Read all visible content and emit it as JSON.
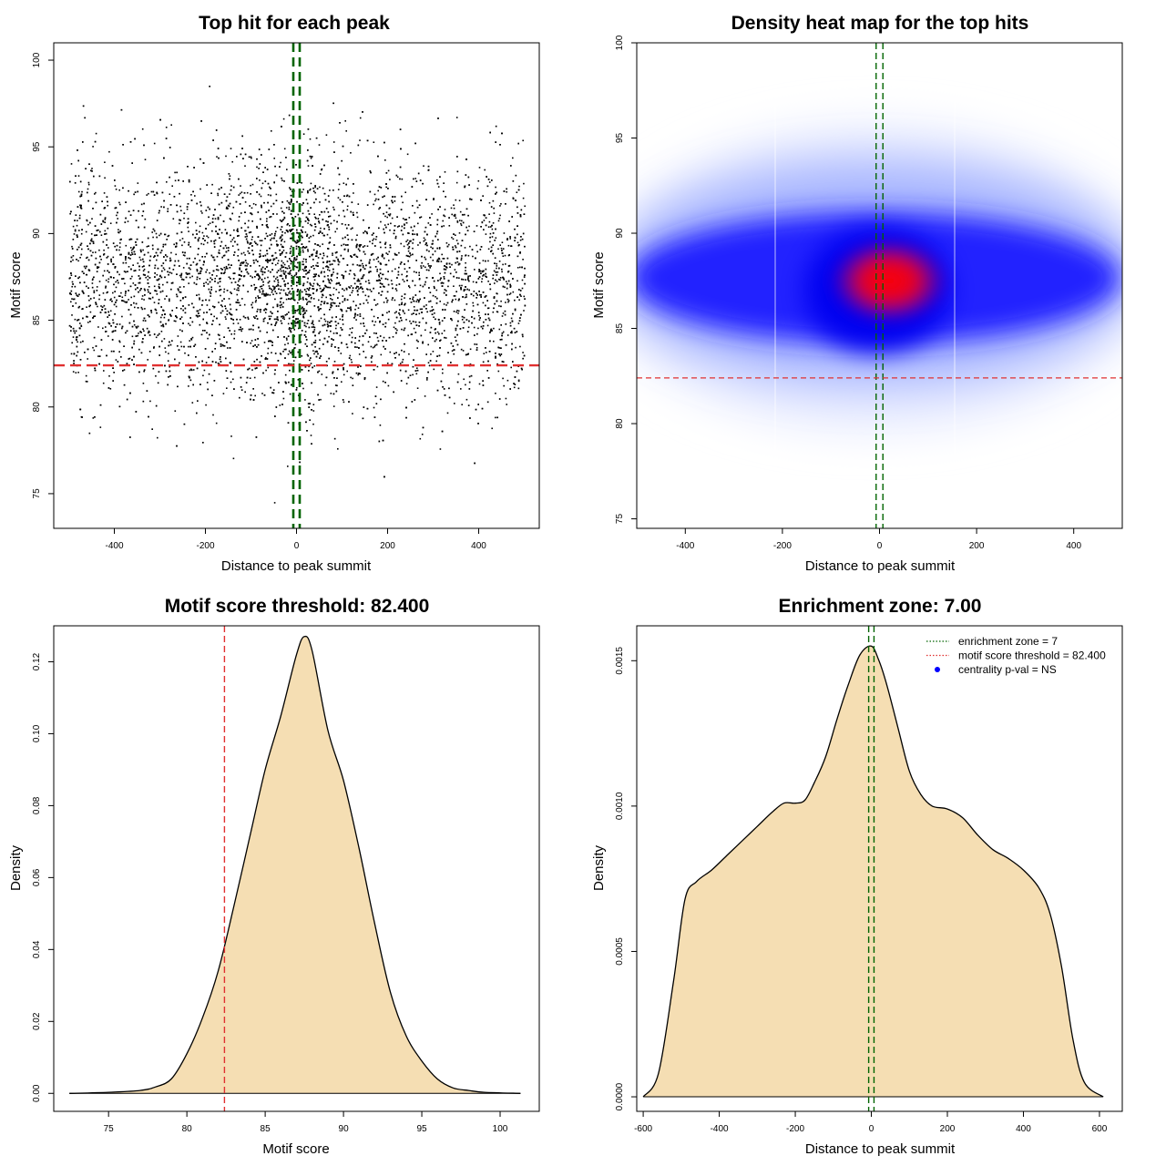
{
  "chart_data": [
    {
      "type": "scatter",
      "title": "Top hit for each peak",
      "xlabel": "Distance to peak summit",
      "ylabel": "Motif score",
      "xlim": [
        -533,
        533
      ],
      "ylim": [
        73,
        101
      ],
      "xticks": [
        "-400",
        "-200",
        "0",
        "200",
        "400"
      ],
      "xtick_values": [
        -400,
        -200,
        0,
        200,
        400
      ],
      "yticks": [
        "75",
        "80",
        "85",
        "90",
        "95",
        "100"
      ],
      "ytick_values": [
        75,
        80,
        85,
        90,
        95,
        100
      ],
      "vlines": [
        -7,
        7
      ],
      "hline": 82.4,
      "point_count": 7000,
      "distribution": {
        "x_range": [
          -500,
          500
        ],
        "y_mean": 87.3,
        "y_sd": 3.4
      },
      "colors": {
        "points": "#000000",
        "vline": "#006400",
        "hline": "#e03030"
      }
    },
    {
      "type": "heatmap",
      "title": "Density heat map for the top hits",
      "xlabel": "Distance to peak summit",
      "ylabel": "Motif score",
      "xlim": [
        -500,
        500
      ],
      "ylim": [
        74.5,
        100
      ],
      "xticks": [
        "-400",
        "-200",
        "0",
        "200",
        "400"
      ],
      "xtick_values": [
        -400,
        -200,
        0,
        200,
        400
      ],
      "yticks": [
        "75",
        "80",
        "85",
        "90",
        "95",
        "100"
      ],
      "ytick_values": [
        75,
        80,
        85,
        90,
        95,
        100
      ],
      "vlines": [
        -7,
        7
      ],
      "hline": 82.4,
      "hot_spot": {
        "x": 20,
        "y": 87.5
      },
      "colors": {
        "low": "#ffffff",
        "mid": "#0000ff",
        "high": "#ff0000",
        "vline": "#006400",
        "hline": "#e03030"
      }
    },
    {
      "type": "area",
      "title": "Motif score threshold: 82.400",
      "xlabel": "Motif score",
      "ylabel": "Density",
      "xlim": [
        71.5,
        102.5
      ],
      "ylim": [
        -0.005,
        0.13
      ],
      "x": [
        72.5,
        75,
        77,
        78,
        79,
        80,
        81,
        82,
        83,
        84,
        85,
        86,
        87,
        87.5,
        88,
        89,
        90,
        91,
        92,
        93,
        94,
        95,
        96,
        97,
        98,
        99,
        101.3
      ],
      "y": [
        0.0,
        0.0003,
        0.0008,
        0.0018,
        0.004,
        0.011,
        0.021,
        0.034,
        0.052,
        0.071,
        0.09,
        0.105,
        0.122,
        0.127,
        0.123,
        0.101,
        0.087,
        0.068,
        0.047,
        0.028,
        0.016,
        0.009,
        0.004,
        0.0015,
        0.0008,
        0.0003,
        0.0
      ],
      "xticks": [
        "75",
        "80",
        "85",
        "90",
        "95",
        "100"
      ],
      "xtick_values": [
        75,
        80,
        85,
        90,
        95,
        100
      ],
      "yticks": [
        "0.00",
        "0.02",
        "0.04",
        "0.06",
        "0.08",
        "0.10",
        "0.12"
      ],
      "ytick_values": [
        0,
        0.02,
        0.04,
        0.06,
        0.08,
        0.1,
        0.12
      ],
      "vline": 82.4,
      "colors": {
        "fill": "#f5deb3",
        "line": "#000000",
        "vline": "#e03030"
      }
    },
    {
      "type": "area",
      "title": "Enrichment zone: 7.00",
      "xlabel": "Distance to peak summit",
      "ylabel": "Density",
      "xlim": [
        -617,
        660
      ],
      "ylim": [
        -5e-05,
        0.00162
      ],
      "x": [
        -600,
        -560,
        -520,
        -490,
        -460,
        -420,
        -380,
        -340,
        -300,
        -260,
        -230,
        -200,
        -175,
        -150,
        -120,
        -90,
        -60,
        -30,
        0,
        20,
        40,
        70,
        100,
        130,
        160,
        200,
        240,
        280,
        320,
        360,
        400,
        440,
        470,
        500,
        530,
        560,
        610
      ],
      "y": [
        0.0,
        8e-05,
        0.0004,
        0.00068,
        0.00074,
        0.00078,
        0.00083,
        0.00088,
        0.00093,
        0.00098,
        0.00101,
        0.00101,
        0.00102,
        0.00108,
        0.00117,
        0.0013,
        0.00142,
        0.00152,
        0.00155,
        0.0015,
        0.00142,
        0.00127,
        0.00112,
        0.00104,
        0.001,
        0.00099,
        0.00096,
        0.0009,
        0.00085,
        0.00082,
        0.00078,
        0.00072,
        0.00063,
        0.00045,
        0.0002,
        5e-05,
        0.0
      ],
      "xticks": [
        "-600",
        "-400",
        "-200",
        "0",
        "200",
        "400",
        "600"
      ],
      "xtick_values": [
        -600,
        -400,
        -200,
        0,
        200,
        400,
        600
      ],
      "yticks": [
        "0.0000",
        "0.0005",
        "0.0010",
        "0.0015"
      ],
      "ytick_values": [
        0,
        0.0005,
        0.001,
        0.0015
      ],
      "vlines": [
        -7,
        7
      ],
      "legend": {
        "position": "top-right",
        "items": [
          {
            "label": "enrichment zone = 7",
            "symbol": "dotted-line",
            "color": "#006400"
          },
          {
            "label": "motif score threshold = 82.400",
            "symbol": "dotted-line",
            "color": "#e03030"
          },
          {
            "label": "centrality p-val = NS",
            "symbol": "dot",
            "color": "#0000ff"
          }
        ]
      },
      "colors": {
        "fill": "#f5deb3",
        "line": "#000000",
        "vline": "#006400"
      }
    }
  ]
}
